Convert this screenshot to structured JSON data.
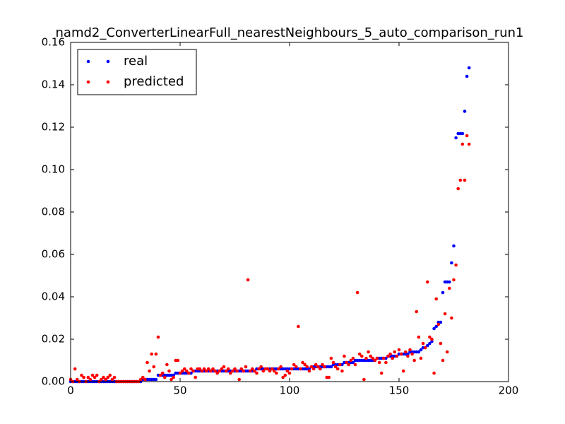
{
  "chart_data": {
    "type": "scatter",
    "title": "namd2_ConverterLinearFull_nearestNeighbours_5_auto_comparison_run1",
    "x": [
      0,
      1,
      2,
      3,
      4,
      5,
      6,
      7,
      8,
      9,
      10,
      11,
      12,
      13,
      14,
      15,
      16,
      17,
      18,
      19,
      20,
      21,
      22,
      23,
      24,
      25,
      26,
      27,
      28,
      29,
      30,
      31,
      32,
      33,
      34,
      35,
      36,
      37,
      38,
      39,
      40,
      41,
      42,
      43,
      44,
      45,
      46,
      47,
      48,
      49,
      50,
      51,
      52,
      53,
      54,
      55,
      56,
      57,
      58,
      59,
      60,
      61,
      62,
      63,
      64,
      65,
      66,
      67,
      68,
      69,
      70,
      71,
      72,
      73,
      74,
      75,
      76,
      77,
      78,
      79,
      80,
      81,
      82,
      83,
      84,
      85,
      86,
      87,
      88,
      89,
      90,
      91,
      92,
      93,
      94,
      95,
      96,
      97,
      98,
      99,
      100,
      101,
      102,
      103,
      104,
      105,
      106,
      107,
      108,
      109,
      110,
      111,
      112,
      113,
      114,
      115,
      116,
      117,
      118,
      119,
      120,
      121,
      122,
      123,
      124,
      125,
      126,
      127,
      128,
      129,
      130,
      131,
      132,
      133,
      134,
      135,
      136,
      137,
      138,
      139,
      140,
      141,
      142,
      143,
      144,
      145,
      146,
      147,
      148,
      149,
      150,
      151,
      152,
      153,
      154,
      155,
      156,
      157,
      158,
      159,
      160,
      161,
      162,
      163,
      164,
      165,
      166,
      167,
      168,
      169,
      170,
      171,
      172,
      173,
      174,
      175,
      176,
      177,
      178,
      179,
      180,
      181,
      182
    ],
    "series": [
      {
        "name": "real",
        "color": "#0000ff",
        "values": [
          0,
          0,
          0,
          0,
          0,
          0,
          0,
          0,
          0,
          0,
          0,
          0,
          0,
          0,
          0,
          0,
          0,
          0,
          0,
          0,
          0,
          0,
          0,
          0,
          0,
          0,
          0,
          0,
          0,
          0,
          0,
          0,
          0,
          0.001,
          0.001,
          0.001,
          0.001,
          0.001,
          0.001,
          0.001,
          0.003,
          0.003,
          0.003,
          0.003,
          0.003,
          0.003,
          0.003,
          0.003,
          0.004,
          0.004,
          0.004,
          0.004,
          0.004,
          0.004,
          0.004,
          0.004,
          0.005,
          0.005,
          0.005,
          0.005,
          0.005,
          0.005,
          0.005,
          0.005,
          0.005,
          0.005,
          0.005,
          0.005,
          0.005,
          0.005,
          0.005,
          0.005,
          0.005,
          0.005,
          0.005,
          0.005,
          0.005,
          0.005,
          0.005,
          0.005,
          0.005,
          0.005,
          0.005,
          0.005,
          0.005,
          0.006,
          0.006,
          0.006,
          0.006,
          0.006,
          0.006,
          0.006,
          0.006,
          0.006,
          0.006,
          0.006,
          0.006,
          0.006,
          0.006,
          0.006,
          0.006,
          0.006,
          0.006,
          0.006,
          0.006,
          0.006,
          0.006,
          0.006,
          0.006,
          0.006,
          0.007,
          0.007,
          0.007,
          0.007,
          0.007,
          0.007,
          0.007,
          0.007,
          0.007,
          0.007,
          0.008,
          0.008,
          0.008,
          0.008,
          0.008,
          0.009,
          0.009,
          0.009,
          0.009,
          0.009,
          0.01,
          0.01,
          0.01,
          0.01,
          0.01,
          0.01,
          0.01,
          0.01,
          0.01,
          0.01,
          0.011,
          0.011,
          0.011,
          0.011,
          0.011,
          0.012,
          0.012,
          0.012,
          0.012,
          0.012,
          0.013,
          0.013,
          0.013,
          0.013,
          0.013,
          0.014,
          0.014,
          0.014,
          0.014,
          0.014,
          0.015,
          0.016,
          0.016,
          0.017,
          0.018,
          0.019,
          0.025,
          0.026,
          0.028,
          0.028,
          0.042,
          0.047,
          0.047,
          0.047,
          0.056,
          0.064,
          0.115,
          0.117,
          0.117,
          0.117,
          0.1275,
          0.144,
          0.148
        ]
      },
      {
        "name": "predicted",
        "color": "#ff0000",
        "values": [
          0.001,
          0,
          0.006,
          0.001,
          0,
          0.003,
          0.002,
          0,
          0.002,
          0.001,
          0.003,
          0.002,
          0.003,
          0,
          0.001,
          0.002,
          0.001,
          0.002,
          0.003,
          0.001,
          0.002,
          0,
          0,
          0,
          0,
          0,
          0,
          0,
          0,
          0,
          0,
          0,
          0.001,
          0.002,
          0.001,
          0.009,
          0.005,
          0.013,
          0.007,
          0.013,
          0.021,
          0.003,
          0.004,
          0.002,
          0.008,
          0.005,
          0.001,
          0.002,
          0.01,
          0.01,
          0.004,
          0.005,
          0.006,
          0.005,
          0.004,
          0.006,
          0.005,
          0.002,
          0.006,
          0.006,
          0.005,
          0.006,
          0.005,
          0.006,
          0.005,
          0.006,
          0.005,
          0.004,
          0.005,
          0.006,
          0.007,
          0.005,
          0.006,
          0.004,
          0.005,
          0.006,
          0.005,
          0.001,
          0.006,
          0.005,
          0.007,
          0.048,
          0.005,
          0.006,
          0.005,
          0.004,
          0.006,
          0.007,
          0.005,
          0.006,
          0.006,
          0.005,
          0.006,
          0.005,
          0.004,
          0.006,
          0.007,
          0.002,
          0.003,
          0.005,
          0.004,
          0.006,
          0.008,
          0.007,
          0.026,
          0.006,
          0.009,
          0.008,
          0.007,
          0.005,
          0.007,
          0.006,
          0.008,
          0.007,
          0.006,
          0.008,
          0.007,
          0.002,
          0.002,
          0.011,
          0.009,
          0.007,
          0.006,
          0.008,
          0.005,
          0.012,
          0.009,
          0.008,
          0.01,
          0.011,
          0.008,
          0.042,
          0.013,
          0.012,
          0.001,
          0.011,
          0.014,
          0.012,
          0.011,
          0.01,
          0.011,
          0.009,
          0.004,
          0.011,
          0.009,
          0.012,
          0.013,
          0.011,
          0.014,
          0.012,
          0.015,
          0.013,
          0.005,
          0.014,
          0.012,
          0.015,
          0.013,
          0.01,
          0.033,
          0.021,
          0.011,
          0.018,
          0.016,
          0.047,
          0.021,
          0.02,
          0.004,
          0.039,
          0.027,
          0.018,
          0.01,
          0.032,
          0.014,
          0.044,
          0.03,
          0.048,
          0.055,
          0.091,
          0.095,
          0.112,
          0.095,
          0.116,
          0.112
        ]
      }
    ],
    "xlim": [
      0,
      200
    ],
    "xticks": [
      0,
      50,
      100,
      150,
      200
    ],
    "ylim": [
      0,
      0.16
    ],
    "yticks": [
      {
        "value": 0,
        "label": "0.00"
      },
      0.02,
      0.04,
      0.06,
      0.08,
      {
        "value": 0.1,
        "label": "0.10"
      },
      0.12,
      0.14,
      0.16
    ],
    "legend": "upper left"
  }
}
